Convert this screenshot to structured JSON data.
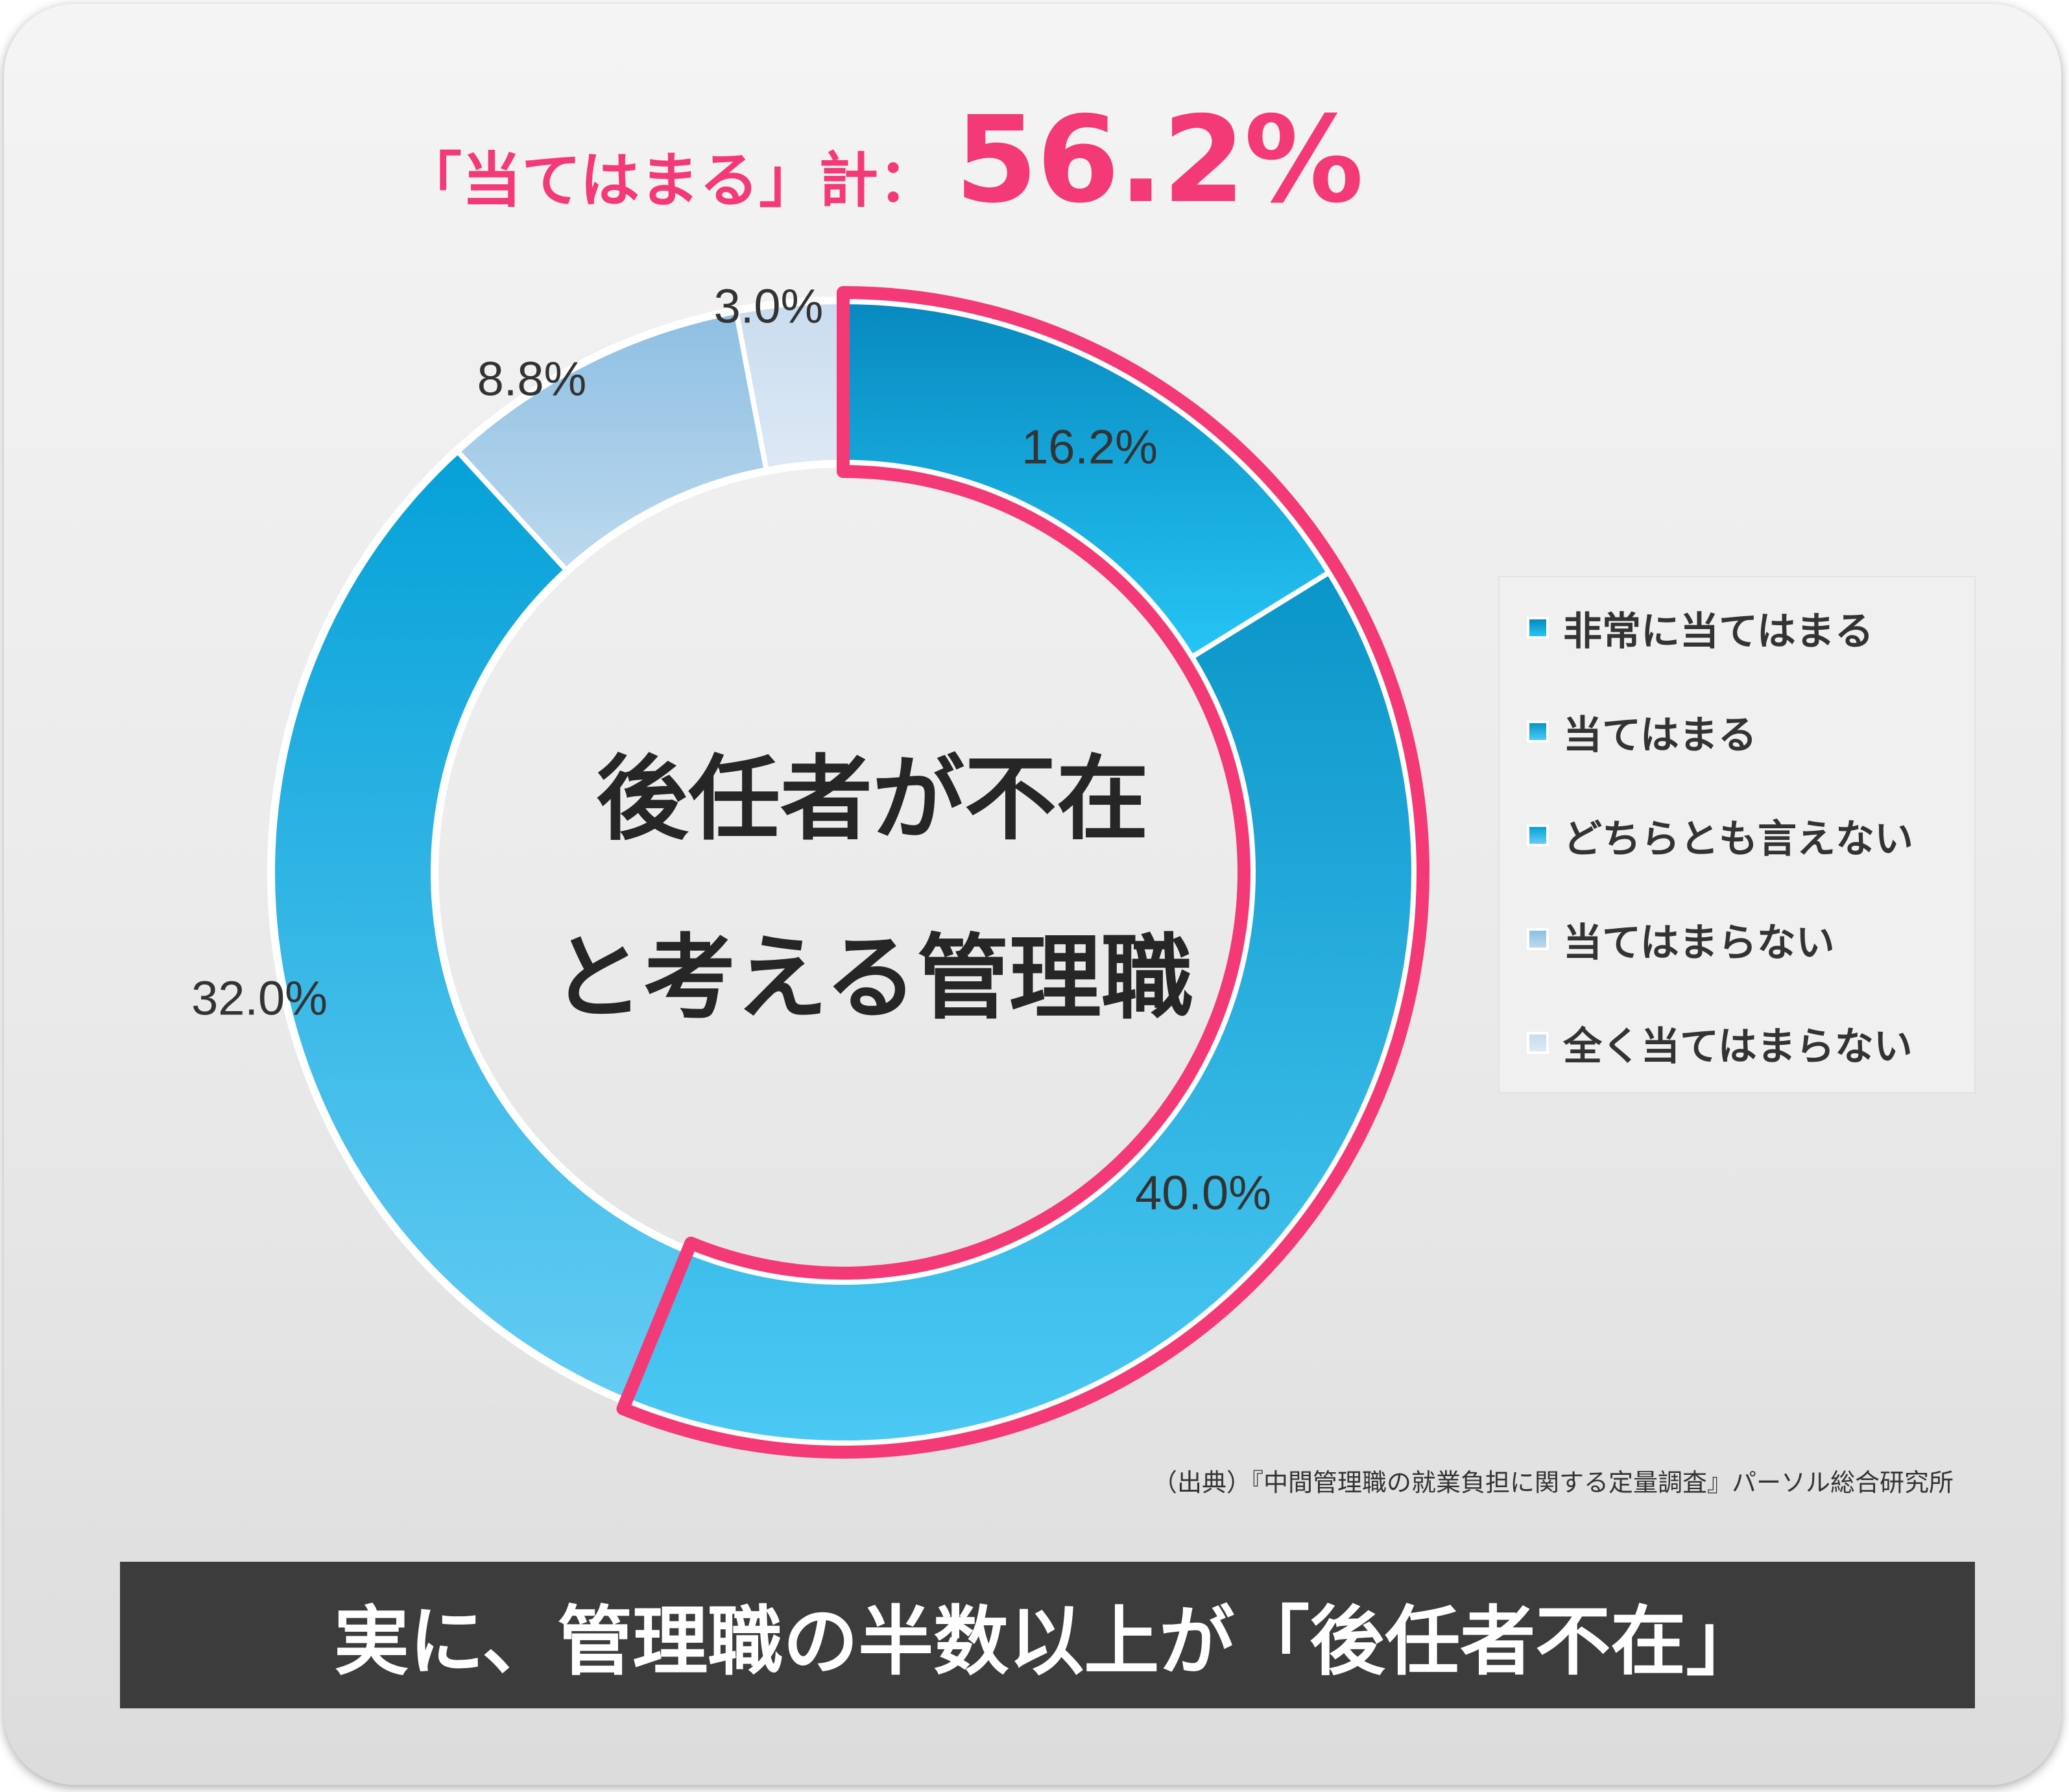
{
  "headline": {
    "label": "「当てはまる」計：",
    "value": "56.2%"
  },
  "center_text": {
    "line1": "後任者が不在",
    "line2": "と考える管理職"
  },
  "chart_data": {
    "type": "pie",
    "donut": true,
    "categories": [
      "非常に当てはまる",
      "当てはまる",
      "どちらとも言えない",
      "当てはまらない",
      "全く当てはまらない"
    ],
    "values": [
      16.2,
      40.0,
      32.0,
      8.8,
      3.0
    ],
    "data_labels": [
      "16.2%",
      "40.0%",
      "32.0%",
      "8.8%",
      "3.0%"
    ],
    "legend_position": "right",
    "highlight": {
      "segments": [
        "非常に当てはまる",
        "当てはまる"
      ],
      "total_label": "56.2%"
    },
    "colors": [
      {
        "top": "#0789bf",
        "bottom": "#26c5f5"
      },
      {
        "top": "#0a95c8",
        "bottom": "#4bc9f4"
      },
      {
        "top": "#05a1d8",
        "bottom": "#64ccf3"
      },
      {
        "top": "#8ebfe2",
        "bottom": "#bcd9ee"
      },
      {
        "top": "#c9dcef",
        "bottom": "#dde9f5"
      }
    ],
    "highlight_color": "#f43a76"
  },
  "source": "（出典）『中間管理職の就業負担に関する定量調査』パーソル総合研究所",
  "banner": "実に、管理職の半数以上が「後任者不在」"
}
